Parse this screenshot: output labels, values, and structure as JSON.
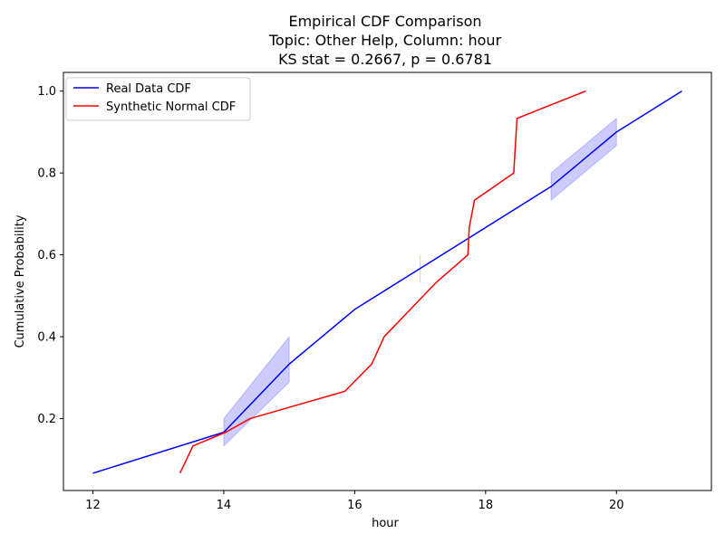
{
  "chart_data": {
    "type": "line",
    "title_lines": [
      "Empirical CDF Comparison",
      "Topic: Other Help, Column: hour",
      "KS stat = 0.2667, p = 0.6781"
    ],
    "xlabel": "hour",
    "ylabel": "Cumulative Probability",
    "xlim": [
      11.55,
      21.45
    ],
    "ylim": [
      0.0244,
      1.0456
    ],
    "xticks": [
      12,
      14,
      16,
      18,
      20
    ],
    "yticks": [
      0.2,
      0.4,
      0.6,
      0.8,
      1.0
    ],
    "xtick_labels": [
      "12",
      "14",
      "16",
      "18",
      "20"
    ],
    "ytick_labels": [
      "0.2",
      "0.4",
      "0.6",
      "0.8",
      "1.0"
    ],
    "grid": false,
    "legend_position": "top-left",
    "series": [
      {
        "name": "Real Data CDF",
        "color": "#0000ff",
        "x": [
          12,
          14,
          15,
          16,
          17,
          19,
          20,
          21
        ],
        "y": [
          0.0667,
          0.1667,
          0.3333,
          0.4667,
          0.5667,
          0.7667,
          0.9,
          1.0
        ]
      },
      {
        "name": "Synthetic Normal CDF",
        "color": "#ff0000",
        "x": [
          13.33,
          13.53,
          14.03,
          14.4,
          15.85,
          16.26,
          16.45,
          16.85,
          17.25,
          17.73,
          17.75,
          17.83,
          18.43,
          18.48,
          19.53
        ],
        "y": [
          0.0667,
          0.1333,
          0.1667,
          0.2,
          0.2667,
          0.3333,
          0.4,
          0.4667,
          0.5333,
          0.6,
          0.6667,
          0.7333,
          0.8,
          0.9333,
          1.0
        ]
      }
    ],
    "bands": [
      {
        "color": "#0000ff",
        "opacity": 0.2,
        "x": [
          14,
          15
        ],
        "lower": [
          0.1333,
          0.2889
        ],
        "upper": [
          0.2,
          0.4
        ]
      },
      {
        "color": "#0000ff",
        "opacity": 0.2,
        "x": [
          17,
          17
        ],
        "lower": [
          0.5333,
          0.5333
        ],
        "upper": [
          0.6,
          0.6
        ]
      },
      {
        "color": "#0000ff",
        "opacity": 0.2,
        "x": [
          19,
          20
        ],
        "lower": [
          0.7333,
          0.8667
        ],
        "upper": [
          0.8,
          0.9333
        ]
      }
    ]
  }
}
